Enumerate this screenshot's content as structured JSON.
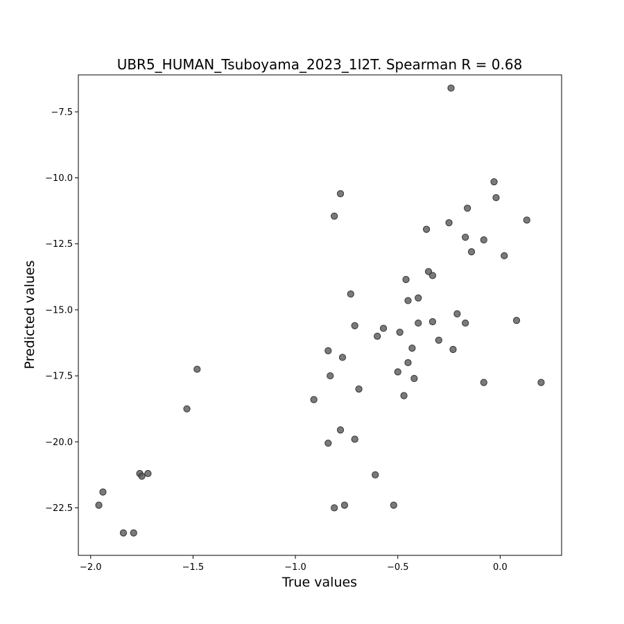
{
  "chart_data": {
    "type": "scatter",
    "title": "UBR5_HUMAN_Tsuboyama_2023_1I2T. Spearman R = 0.68",
    "xlabel": "True values",
    "ylabel": "Predicted values",
    "xlim": [
      -2.06,
      0.3
    ],
    "ylim": [
      -24.3,
      -6.1
    ],
    "xticks": [
      -2.0,
      -1.5,
      -1.0,
      -0.5,
      0.0
    ],
    "xtick_labels": [
      "−2.0",
      "−1.5",
      "−1.0",
      "−0.5",
      "0.0"
    ],
    "yticks": [
      -7.5,
      -10.0,
      -12.5,
      -15.0,
      -17.5,
      -20.0,
      -22.5
    ],
    "ytick_labels": [
      "−7.5",
      "−10.0",
      "−12.5",
      "−15.0",
      "−17.5",
      "−20.0",
      "−22.5"
    ],
    "grid": false,
    "marker_color": "#555555",
    "points": [
      {
        "x": -0.24,
        "y": -6.6
      },
      {
        "x": -0.03,
        "y": -10.15
      },
      {
        "x": -0.02,
        "y": -10.75
      },
      {
        "x": -0.78,
        "y": -10.6
      },
      {
        "x": -0.16,
        "y": -11.15
      },
      {
        "x": -0.81,
        "y": -11.45
      },
      {
        "x": -0.25,
        "y": -11.7
      },
      {
        "x": 0.13,
        "y": -11.6
      },
      {
        "x": -0.36,
        "y": -11.95
      },
      {
        "x": -0.17,
        "y": -12.25
      },
      {
        "x": -0.08,
        "y": -12.35
      },
      {
        "x": -0.14,
        "y": -12.8
      },
      {
        "x": 0.02,
        "y": -12.95
      },
      {
        "x": -0.35,
        "y": -13.55
      },
      {
        "x": -0.33,
        "y": -13.7
      },
      {
        "x": -0.46,
        "y": -13.85
      },
      {
        "x": -0.73,
        "y": -14.4
      },
      {
        "x": -0.4,
        "y": -14.55
      },
      {
        "x": -0.45,
        "y": -14.65
      },
      {
        "x": -0.21,
        "y": -15.15
      },
      {
        "x": -0.33,
        "y": -15.45
      },
      {
        "x": 0.08,
        "y": -15.4
      },
      {
        "x": -0.4,
        "y": -15.5
      },
      {
        "x": -0.17,
        "y": -15.5
      },
      {
        "x": -0.71,
        "y": -15.6
      },
      {
        "x": -0.57,
        "y": -15.7
      },
      {
        "x": -0.49,
        "y": -15.85
      },
      {
        "x": -0.6,
        "y": -16.0
      },
      {
        "x": -0.3,
        "y": -16.15
      },
      {
        "x": -0.43,
        "y": -16.45
      },
      {
        "x": -0.23,
        "y": -16.5
      },
      {
        "x": -0.84,
        "y": -16.55
      },
      {
        "x": -0.77,
        "y": -16.8
      },
      {
        "x": -0.45,
        "y": -17.0
      },
      {
        "x": -0.5,
        "y": -17.35
      },
      {
        "x": -1.48,
        "y": -17.25
      },
      {
        "x": -0.83,
        "y": -17.5
      },
      {
        "x": -0.42,
        "y": -17.6
      },
      {
        "x": -0.08,
        "y": -17.75
      },
      {
        "x": 0.2,
        "y": -17.75
      },
      {
        "x": -0.69,
        "y": -18.0
      },
      {
        "x": -0.47,
        "y": -18.25
      },
      {
        "x": -0.91,
        "y": -18.4
      },
      {
        "x": -1.53,
        "y": -18.75
      },
      {
        "x": -0.78,
        "y": -19.55
      },
      {
        "x": -0.71,
        "y": -19.9
      },
      {
        "x": -0.84,
        "y": -20.05
      },
      {
        "x": -1.72,
        "y": -21.2
      },
      {
        "x": -1.76,
        "y": -21.2
      },
      {
        "x": -1.75,
        "y": -21.3
      },
      {
        "x": -0.61,
        "y": -21.25
      },
      {
        "x": -1.94,
        "y": -21.9
      },
      {
        "x": -1.96,
        "y": -22.4
      },
      {
        "x": -0.76,
        "y": -22.4
      },
      {
        "x": -0.52,
        "y": -22.4
      },
      {
        "x": -0.81,
        "y": -22.5
      },
      {
        "x": -1.84,
        "y": -23.45
      },
      {
        "x": -1.79,
        "y": -23.45
      }
    ]
  }
}
